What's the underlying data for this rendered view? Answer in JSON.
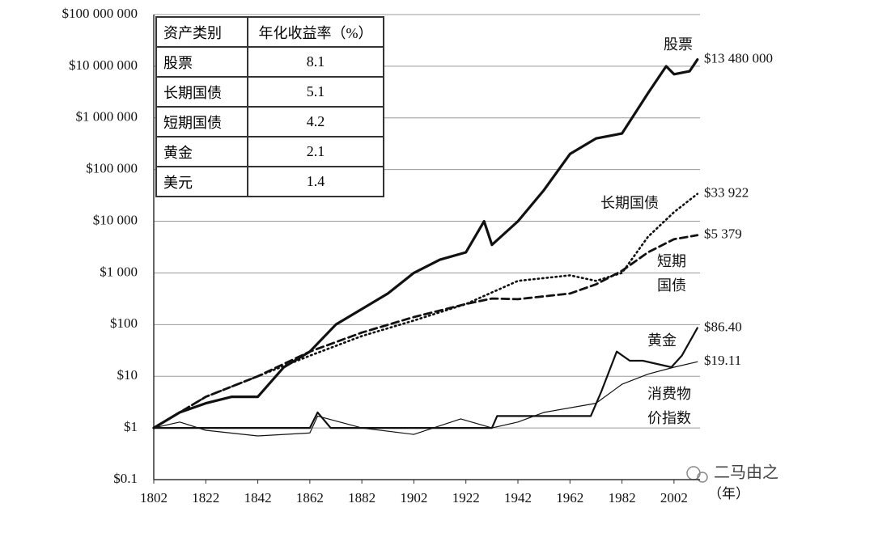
{
  "chart_data": {
    "type": "line",
    "log_y": true,
    "grid": true,
    "xlim": [
      1802,
      2012
    ],
    "ylim": [
      0.1,
      100000000
    ],
    "xticks": [
      1802,
      1822,
      1842,
      1862,
      1882,
      1902,
      1922,
      1942,
      1962,
      1982,
      2002
    ],
    "yticks": [
      {
        "value": 0.1,
        "label": "$0.1"
      },
      {
        "value": 1,
        "label": "$1"
      },
      {
        "value": 10,
        "label": "$10"
      },
      {
        "value": 100,
        "label": "$100"
      },
      {
        "value": 1000,
        "label": "$1 000"
      },
      {
        "value": 10000,
        "label": "$10 000"
      },
      {
        "value": 100000,
        "label": "$100 000"
      },
      {
        "value": 1000000,
        "label": "$1 000 000"
      },
      {
        "value": 10000000,
        "label": "$10 000 000"
      },
      {
        "value": 100000000,
        "label": "$100 000 000"
      }
    ],
    "x_unit": "（年）",
    "series": [
      {
        "name": "股票",
        "color": "#111111",
        "dash": "solid",
        "end_label": "$13 480 000",
        "x": [
          1802,
          1812,
          1822,
          1832,
          1842,
          1852,
          1862,
          1872,
          1882,
          1892,
          1902,
          1912,
          1922,
          1929,
          1932,
          1942,
          1952,
          1962,
          1972,
          1982,
          1992,
          1999,
          2002,
          2008,
          2011
        ],
        "values": [
          1,
          2,
          3,
          4,
          4,
          15,
          30,
          100,
          200,
          400,
          1000,
          1800,
          2500,
          10000,
          3500,
          10000,
          40000,
          200000,
          400000,
          500000,
          3000000,
          10000000,
          7000000,
          8000000,
          13480000
        ]
      },
      {
        "name": "长期国债",
        "color": "#111111",
        "dash": "dotted",
        "end_label": "$33 922",
        "x": [
          1802,
          1822,
          1842,
          1862,
          1882,
          1902,
          1922,
          1942,
          1962,
          1972,
          1982,
          1992,
          2002,
          2011
        ],
        "values": [
          1,
          4,
          10,
          25,
          60,
          120,
          250,
          700,
          900,
          700,
          1000,
          5000,
          15000,
          33922
        ]
      },
      {
        "name": "短期国债",
        "color": "#111111",
        "dash": "dashed",
        "end_label": "$5 379",
        "x": [
          1802,
          1822,
          1842,
          1862,
          1882,
          1902,
          1922,
          1932,
          1942,
          1962,
          1972,
          1982,
          1992,
          2002,
          2011
        ],
        "values": [
          1,
          4,
          10,
          30,
          70,
          140,
          250,
          320,
          310,
          400,
          600,
          1100,
          2500,
          4500,
          5379
        ]
      },
      {
        "name": "黄金",
        "color": "#111111",
        "dash": "solid",
        "end_label": "$86.40",
        "x": [
          1802,
          1862,
          1865,
          1870,
          1932,
          1934,
          1970,
          1974,
          1980,
          1985,
          1990,
          2001,
          2005,
          2011
        ],
        "values": [
          1,
          1,
          2,
          1,
          1,
          1.7,
          1.7,
          5,
          30,
          20,
          20,
          15,
          25,
          86.4
        ]
      },
      {
        "name": "消费物价指数",
        "color": "#111111",
        "dash": "solid",
        "end_label": "$19.11",
        "x": [
          1802,
          1812,
          1822,
          1842,
          1862,
          1865,
          1882,
          1902,
          1920,
          1932,
          1942,
          1952,
          1972,
          1982,
          1992,
          2002,
          2011
        ],
        "values": [
          1,
          1.3,
          0.9,
          0.7,
          0.8,
          1.7,
          1.0,
          0.75,
          1.5,
          1.0,
          1.3,
          2.0,
          3.0,
          7,
          11,
          15,
          19.11
        ]
      }
    ],
    "table": {
      "header": [
        "资产类别",
        "年化收益率（%）"
      ],
      "rows": [
        [
          "股票",
          8.1
        ],
        [
          "长期国债",
          5.1
        ],
        [
          "短期国债",
          4.2
        ],
        [
          "黄金",
          2.1
        ],
        [
          "美元",
          1.4
        ]
      ]
    },
    "watermark": "二马由之"
  }
}
